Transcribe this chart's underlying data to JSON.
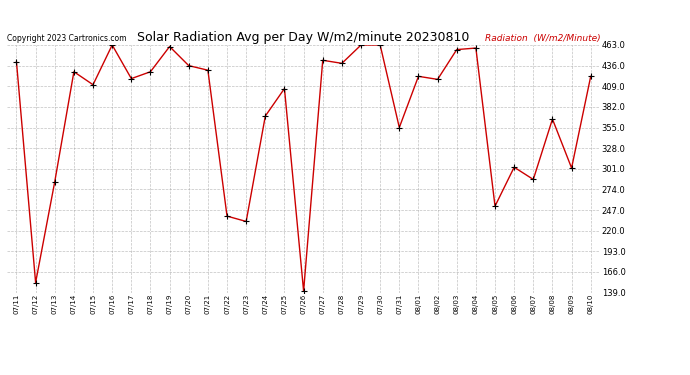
{
  "title": "Solar Radiation Avg per Day W/m2/minute 20230810",
  "copyright": "Copyright 2023 Cartronics.com",
  "legend_label": "Radiation  (W/m2/Minute)",
  "dates": [
    "07/11",
    "07/12",
    "07/13",
    "07/14",
    "07/15",
    "07/16",
    "07/17",
    "07/18",
    "07/19",
    "07/20",
    "07/21",
    "07/22",
    "07/23",
    "07/24",
    "07/25",
    "07/26",
    "07/27",
    "07/28",
    "07/29",
    "07/30",
    "07/31",
    "08/01",
    "08/02",
    "08/03",
    "08/04",
    "08/05",
    "08/06",
    "08/07",
    "08/08",
    "08/09",
    "08/10"
  ],
  "values": [
    441,
    152,
    284,
    428,
    411,
    463,
    419,
    428,
    461,
    436,
    430,
    239,
    232,
    370,
    406,
    141,
    443,
    439,
    463,
    463,
    355,
    422,
    418,
    457,
    459,
    252,
    303,
    287,
    366,
    302,
    422
  ],
  "line_color": "#cc0000",
  "marker_color": "#000000",
  "bg_color": "#ffffff",
  "grid_color": "#999999",
  "title_color": "#000000",
  "copyright_color": "#000000",
  "legend_color": "#cc0000",
  "ymin": 139.0,
  "ymax": 463.0,
  "yticks": [
    139.0,
    166.0,
    193.0,
    220.0,
    247.0,
    274.0,
    301.0,
    328.0,
    355.0,
    382.0,
    409.0,
    436.0,
    463.0
  ],
  "title_fontsize": 9,
  "copyright_fontsize": 5.5,
  "legend_fontsize": 6.5,
  "ytick_fontsize": 6,
  "xtick_fontsize": 5
}
